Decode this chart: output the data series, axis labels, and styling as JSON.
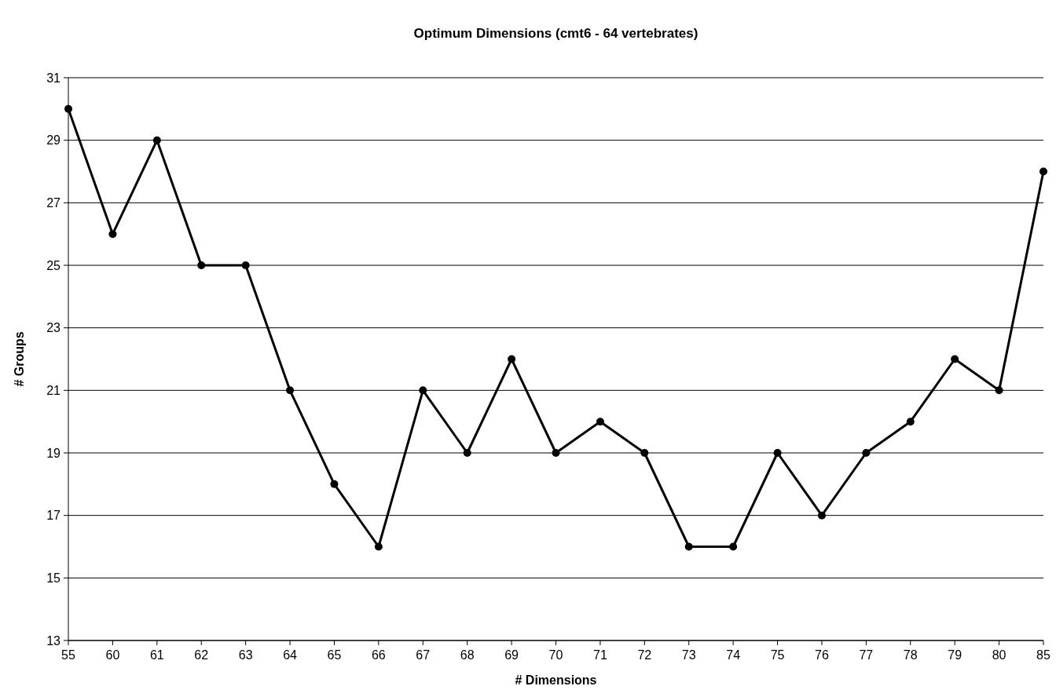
{
  "chart_data": {
    "type": "line",
    "title": "Optimum Dimensions (cmt6 - 64 vertebrates)",
    "xlabel": "# Dimensions",
    "ylabel": "# Groups",
    "categories": [
      "55",
      "60",
      "61",
      "62",
      "63",
      "64",
      "65",
      "66",
      "67",
      "68",
      "69",
      "70",
      "71",
      "72",
      "73",
      "74",
      "75",
      "76",
      "77",
      "78",
      "79",
      "80",
      "85"
    ],
    "series": [
      {
        "color": "#000000",
        "values": [
          30,
          26,
          29,
          25,
          25,
          21,
          18,
          16,
          21,
          19,
          22,
          19,
          20,
          19,
          16,
          16,
          19,
          17,
          19,
          20,
          22,
          21,
          28
        ]
      }
    ],
    "ylim": [
      13,
      31
    ],
    "yticks": [
      13,
      15,
      17,
      19,
      21,
      23,
      25,
      27,
      29,
      31
    ],
    "grid": "y",
    "marker": "circle",
    "line_style": "solid"
  }
}
